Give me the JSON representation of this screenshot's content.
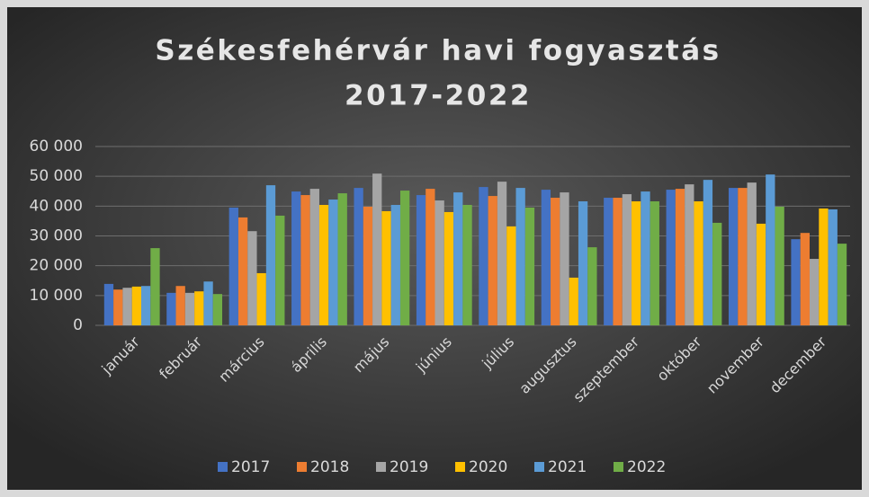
{
  "chart_data": {
    "type": "bar",
    "title": [
      "Székesfehérvár havi fogyasztás",
      "2017-2022"
    ],
    "categories": [
      "január",
      "február",
      "március",
      "április",
      "május",
      "június",
      "július",
      "augusztus",
      "szeptember",
      "október",
      "november",
      "december"
    ],
    "series": [
      {
        "name": "2017",
        "color": "#4472c4",
        "values": [
          13900,
          10900,
          39500,
          44900,
          46100,
          43700,
          46400,
          45500,
          42800,
          45500,
          46100,
          28900
        ]
      },
      {
        "name": "2018",
        "color": "#ed7d31",
        "values": [
          12000,
          13200,
          36200,
          43700,
          39800,
          45800,
          43400,
          42800,
          42800,
          45800,
          46100,
          31000
        ]
      },
      {
        "name": "2019",
        "color": "#a5a5a5",
        "values": [
          12600,
          10900,
          31600,
          45800,
          50900,
          41900,
          48200,
          44600,
          44000,
          47300,
          47900,
          22300
        ]
      },
      {
        "name": "2020",
        "color": "#ffc000",
        "values": [
          13000,
          11400,
          17500,
          40400,
          38300,
          38000,
          33200,
          16000,
          41600,
          41600,
          34100,
          39200
        ]
      },
      {
        "name": "2021",
        "color": "#5b9bd5",
        "values": [
          13200,
          14700,
          47000,
          42200,
          40400,
          44600,
          46100,
          41600,
          44900,
          48800,
          50600,
          38900
        ]
      },
      {
        "name": "2022",
        "color": "#70ad47",
        "values": [
          25900,
          10500,
          36800,
          44300,
          45200,
          40400,
          39500,
          26200,
          41600,
          34400,
          39800,
          27400
        ]
      }
    ],
    "ylim": [
      0,
      60000
    ],
    "yticks": [
      0,
      {
        "value": 10000,
        "label": "10 000"
      },
      {
        "value": 20000,
        "label": "20 000"
      },
      {
        "value": 30000,
        "label": "30 000"
      },
      {
        "value": 40000,
        "label": "40 000"
      },
      {
        "value": 50000,
        "label": "50 000"
      },
      {
        "value": 60000,
        "label": "60 000"
      }
    ],
    "grid": true,
    "legend": "bottom"
  }
}
